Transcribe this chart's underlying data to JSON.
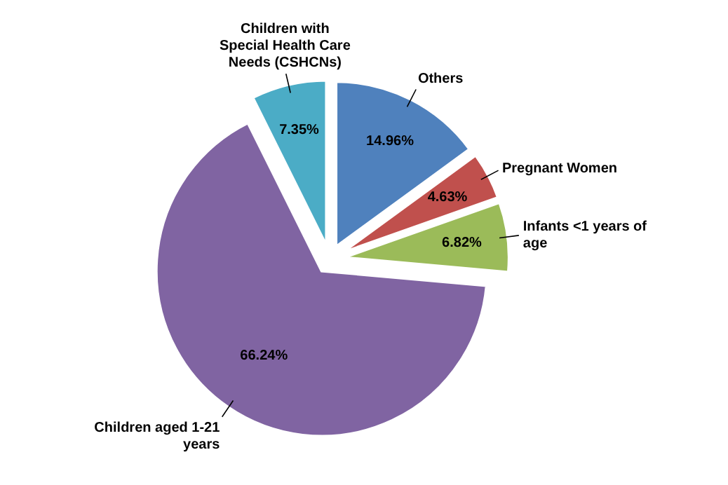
{
  "chart_data": {
    "type": "pie",
    "categories": [
      "Others",
      "Pregnant Women",
      "Infants <1 years of age",
      "Children aged 1-21 years",
      "Children with Special Health Care Needs (CSHCNs)"
    ],
    "values": [
      14.96,
      4.63,
      6.82,
      66.24,
      7.35
    ],
    "colors": [
      "#4f81bd",
      "#c0504d",
      "#9bbb59",
      "#8064a2",
      "#4bacc6"
    ],
    "value_labels": [
      "14.96%",
      "4.63%",
      "6.82%",
      "66.24%",
      "7.35%"
    ]
  }
}
